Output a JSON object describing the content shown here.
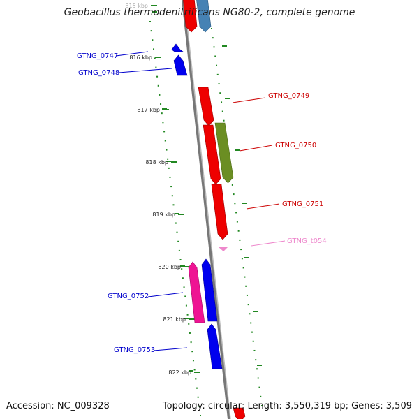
{
  "header": {
    "title": "Geobacillus thermodenitrificans NG80-2, complete genome"
  },
  "footer": {
    "accession": "Accession: NC_009328",
    "topology": "Topology: circular; Length: 3,550,319 bp; Genes: 3,509"
  },
  "ruler": {
    "ticks": [
      {
        "label": "815 kbp",
        "faded": true
      },
      {
        "label": "816 kbp"
      },
      {
        "label": "817 kbp"
      },
      {
        "label": "818 kbp"
      },
      {
        "label": "819 kbp"
      },
      {
        "label": "820 kbp"
      },
      {
        "label": "821 kbp"
      },
      {
        "label": "822 kbp"
      }
    ]
  },
  "genes": [
    {
      "name": "GTNG_0747",
      "strand": "minus",
      "color": "#0000cc"
    },
    {
      "name": "GTNG_0748",
      "strand": "minus",
      "color": "#0000cc"
    },
    {
      "name": "GTNG_0749",
      "strand": "plus",
      "color": "#cc0000"
    },
    {
      "name": "GTNG_0750",
      "strand": "plus",
      "color": "#cc0000"
    },
    {
      "name": "GTNG_0751",
      "strand": "plus",
      "color": "#cc0000"
    },
    {
      "name": "GTNG_t054",
      "strand": "plus",
      "color": "#ee88cc"
    },
    {
      "name": "GTNG_0752",
      "strand": "minus",
      "color": "#0000cc"
    },
    {
      "name": "GTNG_0753",
      "strand": "minus",
      "color": "#0000cc"
    }
  ],
  "colors": {
    "backbone": "#888888",
    "tick_mark": "#228822",
    "forward_gene": "#ee0000",
    "reverse_gene": "#0000ee",
    "olive_feature": "#6b8e23",
    "magenta_feature": "#ee1493",
    "top_blue_feature": "#4682b4",
    "trna_arrow": "#ee88cc"
  }
}
